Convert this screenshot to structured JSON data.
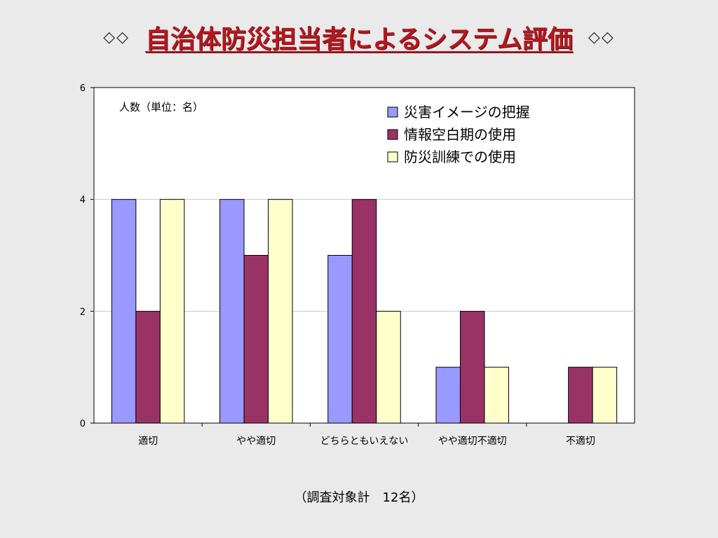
{
  "slide": {
    "title": "自治体防災担当者によるシステム評価",
    "title_prefix": "◇◇",
    "title_suffix": "◇◇",
    "footnote": "（調査対象計　12名）"
  },
  "chart_data": {
    "type": "bar",
    "unit_label": "人数（単位：名）",
    "categories": [
      "適切",
      "やや適切",
      "どちらともいえない",
      "やや適切不適切",
      "不適切"
    ],
    "series": [
      {
        "name": "災害イメージの把握",
        "values": [
          4,
          4,
          3,
          1,
          0
        ],
        "color": "#9999ff"
      },
      {
        "name": "情報空白期の使用",
        "values": [
          2,
          3,
          4,
          2,
          1
        ],
        "color": "#993366"
      },
      {
        "name": "防災訓練での使用",
        "values": [
          4,
          4,
          2,
          1,
          1
        ],
        "color": "#ffffcc"
      }
    ],
    "ylim": [
      0,
      6
    ],
    "yticks": [
      0,
      2,
      4,
      6
    ],
    "grid": true,
    "legend_position": "top-right",
    "plot_background": "#ffffff"
  }
}
